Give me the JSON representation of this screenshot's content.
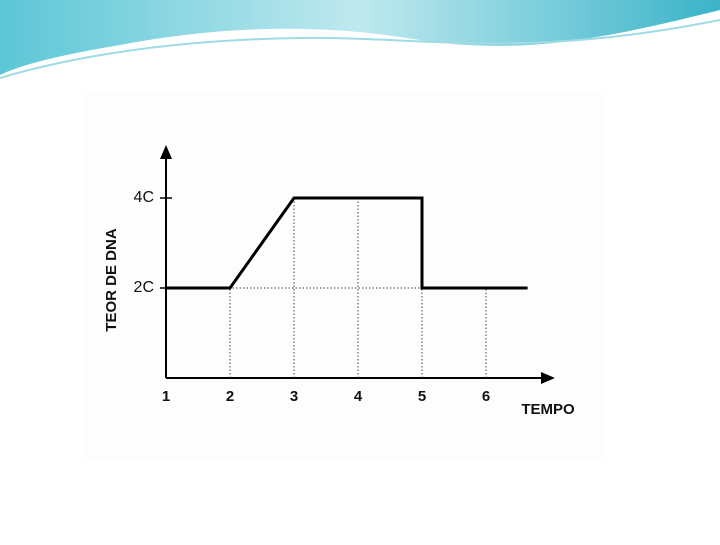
{
  "chart_data": {
    "type": "line",
    "x_label": "TEMPO",
    "y_label": "TEOR DE DNA",
    "series": [
      {
        "color": "#000000",
        "x": [
          1,
          2,
          3,
          5,
          5,
          6.65
        ],
        "values": [
          2,
          2,
          4,
          4,
          2,
          2
        ]
      }
    ],
    "xlim": [
      1,
      7
    ],
    "xticks": [
      1,
      2,
      3,
      4,
      5,
      6
    ],
    "ylim": [
      0,
      5
    ],
    "yticks": [
      {
        "value": 2,
        "label": "2C"
      },
      {
        "value": 4,
        "label": "4C"
      }
    ],
    "guides": true
  }
}
